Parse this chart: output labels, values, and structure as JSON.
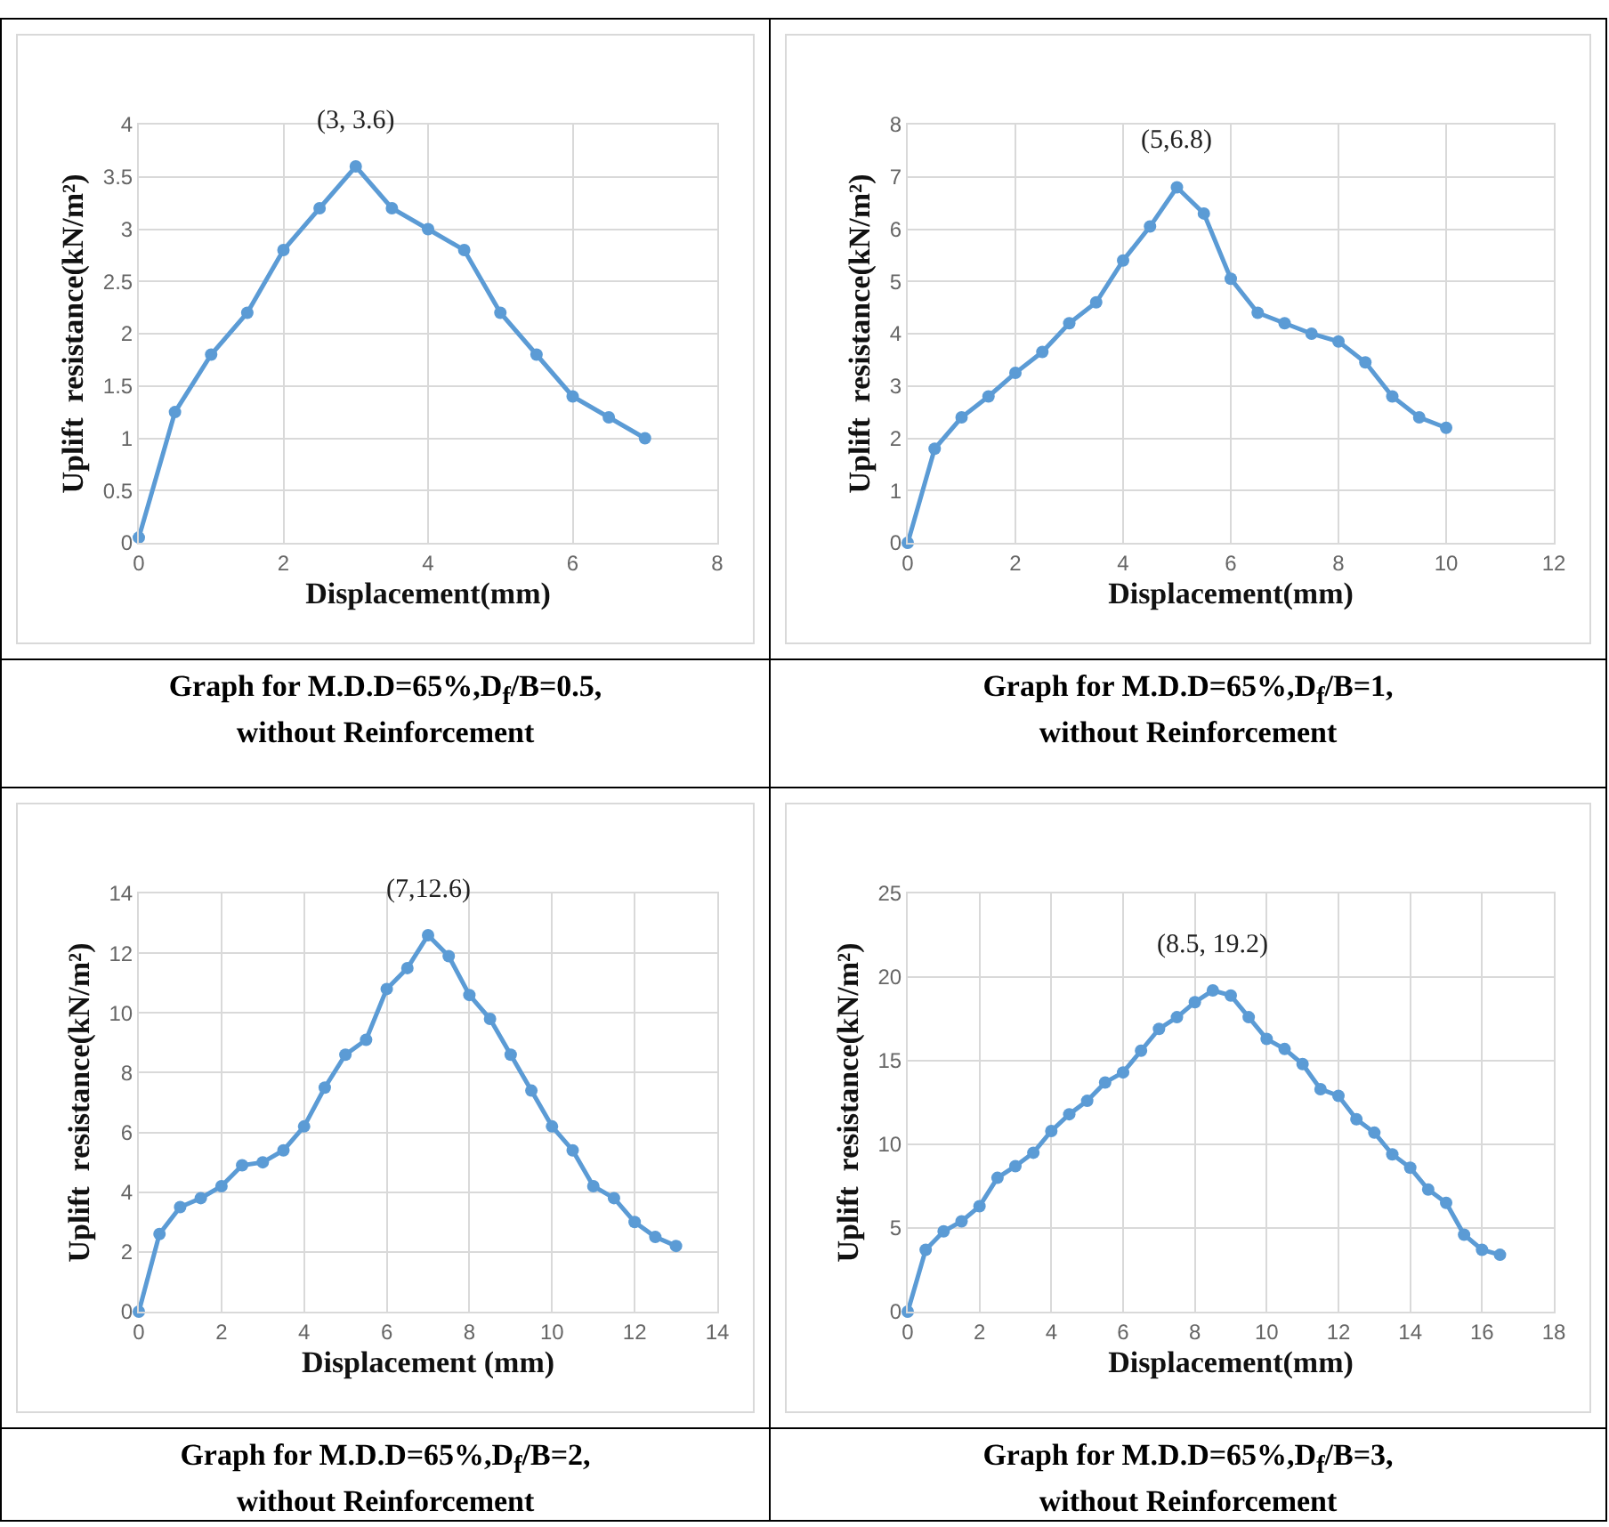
{
  "chart_data": [
    {
      "type": "line",
      "xlabel": "Displacement(mm)",
      "ylabel": "Uplift  resistance(kN/m²)",
      "x": [
        0,
        0.5,
        1,
        1.5,
        2,
        2.5,
        3,
        3.5,
        4,
        4.5,
        5,
        5.5,
        6,
        6.5,
        7
      ],
      "series": [
        {
          "color": "#5b9bd5",
          "values": [
            0.05,
            1.25,
            1.8,
            2.2,
            2.8,
            3.2,
            3.6,
            3.2,
            3.0,
            2.8,
            2.2,
            1.8,
            1.4,
            1.2,
            1.0
          ]
        }
      ],
      "xlim": [
        0,
        8
      ],
      "xticks": [
        0,
        2,
        4,
        6,
        8
      ],
      "ylim": [
        0,
        4
      ],
      "yticks": [
        0,
        0.5,
        1,
        1.5,
        2,
        2.5,
        3,
        3.5,
        4
      ],
      "grid": true,
      "marker": "circle",
      "line_style": "solid",
      "annotations": [
        {
          "text": "(3, 3.6)",
          "x": 3,
          "y": 3.6
        },
        "Graph for M.D.D=65%,D$_{f}$/B=0.5,\nwithout Reinforcement"
      ]
    },
    {
      "type": "line",
      "xlabel": "Displacement(mm)",
      "ylabel": "Uplift  resistance(kN/m²)",
      "x": [
        0,
        0.5,
        1,
        1.5,
        2,
        2.5,
        3,
        3.5,
        4,
        4.5,
        5,
        5.5,
        6,
        6.5,
        7,
        7.5,
        8,
        8.5,
        9,
        9.5,
        10
      ],
      "series": [
        {
          "color": "#5b9bd5",
          "values": [
            0,
            1.8,
            2.4,
            2.8,
            3.25,
            3.65,
            4.2,
            4.6,
            5.4,
            6.05,
            6.8,
            6.3,
            5.05,
            4.4,
            4.2,
            4.0,
            3.85,
            3.45,
            2.8,
            2.4,
            2.2
          ]
        }
      ],
      "xlim": [
        0,
        12
      ],
      "xticks": [
        0,
        2,
        4,
        6,
        8,
        10,
        12
      ],
      "ylim": [
        0,
        8
      ],
      "yticks": [
        0,
        1,
        2,
        3,
        4,
        5,
        6,
        7,
        8
      ],
      "grid": true,
      "marker": "circle",
      "line_style": "solid",
      "annotations": [
        {
          "text": "(5,6.8)",
          "x": 5,
          "y": 6.8
        },
        "Graph for M.D.D=65%,D$_{f}$/B=1,\nwithout Reinforcement"
      ]
    },
    {
      "type": "line",
      "xlabel": "Displacement (mm)",
      "ylabel": "Uplift  resistance(kN/m²)",
      "x": [
        0,
        0.5,
        1,
        1.5,
        2,
        2.5,
        3,
        3.5,
        4,
        4.5,
        5,
        5.5,
        6,
        6.5,
        7,
        7.5,
        8,
        8.5,
        9,
        9.5,
        10,
        10.5,
        11,
        11.5,
        12,
        12.5,
        13
      ],
      "series": [
        {
          "color": "#5b9bd5",
          "values": [
            0,
            2.6,
            3.5,
            3.8,
            4.2,
            4.9,
            5.0,
            5.4,
            6.2,
            7.5,
            8.6,
            9.1,
            10.8,
            11.5,
            12.6,
            11.9,
            10.6,
            9.8,
            8.6,
            7.4,
            6.2,
            5.4,
            4.2,
            3.8,
            3.0,
            2.5,
            2.2
          ]
        }
      ],
      "xlim": [
        0,
        14
      ],
      "xticks": [
        0,
        2,
        4,
        6,
        8,
        10,
        12,
        14
      ],
      "ylim": [
        0,
        14
      ],
      "yticks": [
        0,
        2,
        4,
        6,
        8,
        10,
        12,
        14
      ],
      "grid": true,
      "marker": "circle",
      "line_style": "solid",
      "annotations": [
        {
          "text": "(7,12.6)",
          "x": 7,
          "y": 12.6
        },
        "Graph for M.D.D=65%,D$_{f}$/B=2,\nwithout Reinforcement"
      ]
    },
    {
      "type": "line",
      "xlabel": "Displacement(mm)",
      "ylabel": "Uplift  resistance(kN/m²)",
      "x": [
        0,
        0.5,
        1,
        1.5,
        2,
        2.5,
        3,
        3.5,
        4,
        4.5,
        5,
        5.5,
        6,
        6.5,
        7,
        7.5,
        8,
        8.5,
        9,
        9.5,
        10,
        10.5,
        11,
        11.5,
        12,
        12.5,
        13,
        13.5,
        14,
        14.5,
        15,
        15.5,
        16,
        16.5
      ],
      "series": [
        {
          "color": "#5b9bd5",
          "values": [
            0,
            3.7,
            4.8,
            5.4,
            6.3,
            8.0,
            8.7,
            9.5,
            10.8,
            11.8,
            12.6,
            13.7,
            14.3,
            15.6,
            16.9,
            17.6,
            18.5,
            19.2,
            18.9,
            17.6,
            16.3,
            15.7,
            14.8,
            13.3,
            12.9,
            11.5,
            10.7,
            9.4,
            8.6,
            7.3,
            6.5,
            4.6,
            3.7,
            3.4
          ]
        }
      ],
      "xlim": [
        0,
        18
      ],
      "xticks": [
        0,
        2,
        4,
        6,
        8,
        10,
        12,
        14,
        16,
        18
      ],
      "ylim": [
        0,
        25
      ],
      "yticks": [
        0,
        5,
        10,
        15,
        20,
        25
      ],
      "grid": true,
      "marker": "circle",
      "line_style": "solid",
      "annotations": [
        {
          "text": "(8.5, 19.2)",
          "x": 8.5,
          "y": 19.2
        },
        "Graph for M.D.D=65%,D$_{f}$/B=3,\nwithout Reinforcement"
      ]
    }
  ]
}
